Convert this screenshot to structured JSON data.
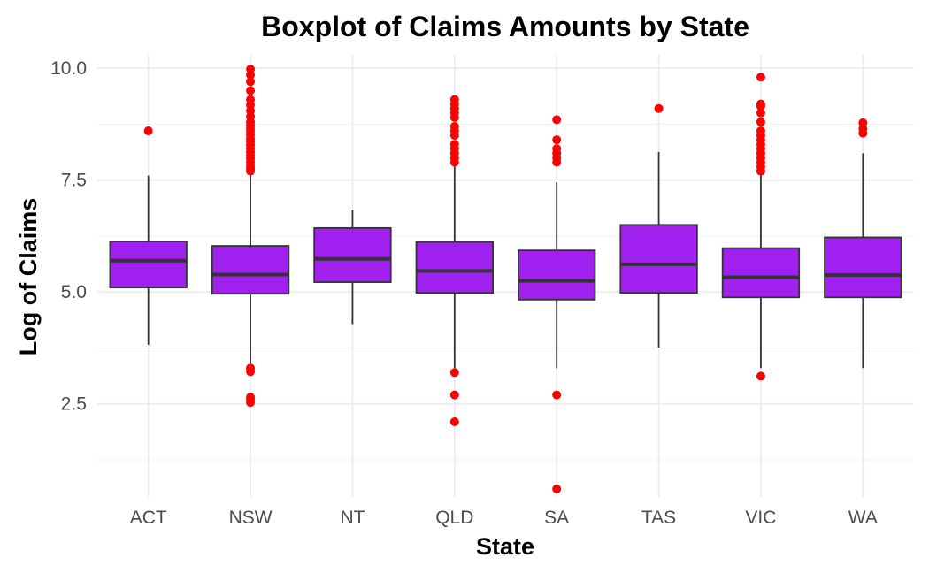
{
  "chart_data": {
    "type": "boxplot",
    "title": "Boxplot of Claims Amounts by State",
    "xlabel": "State",
    "ylabel": "Log of Claims",
    "ylim": [
      0.42,
      10.3
    ],
    "yticks": [
      2.5,
      5.0,
      7.5,
      10.0
    ],
    "ytick_labels": [
      "2.5",
      "5.0",
      "7.5",
      "10.0"
    ],
    "grid": true,
    "box_color": "#a020f0",
    "outlier_color": "#ff0000",
    "categories": [
      "ACT",
      "NSW",
      "NT",
      "QLD",
      "SA",
      "TAS",
      "VIC",
      "WA"
    ],
    "boxes": [
      {
        "category": "ACT",
        "min": 3.82,
        "q1": 5.1,
        "median": 5.7,
        "q3": 6.13,
        "max": 7.6,
        "outliers": [
          8.6
        ]
      },
      {
        "category": "NSW",
        "min": 3.4,
        "q1": 4.96,
        "median": 5.39,
        "q3": 6.03,
        "max": 7.65,
        "outliers": [
          2.53,
          2.6,
          2.65,
          3.22,
          3.3,
          7.7,
          7.75,
          7.82,
          7.9,
          7.98,
          8.05,
          8.12,
          8.2,
          8.28,
          8.35,
          8.42,
          8.5,
          8.58,
          8.65,
          8.72,
          8.8,
          8.92,
          9.05,
          9.18,
          9.3,
          9.5,
          9.7,
          9.85,
          9.98
        ]
      },
      {
        "category": "NT",
        "min": 4.28,
        "q1": 5.22,
        "median": 5.74,
        "q3": 6.43,
        "max": 6.83,
        "outliers": []
      },
      {
        "category": "QLD",
        "min": 3.3,
        "q1": 4.98,
        "median": 5.47,
        "q3": 6.12,
        "max": 7.82,
        "outliers": [
          2.1,
          2.7,
          3.2,
          7.9,
          8.0,
          8.1,
          8.2,
          8.3,
          8.5,
          8.6,
          8.7,
          8.9,
          9.0,
          9.1,
          9.2,
          9.3
        ]
      },
      {
        "category": "SA",
        "min": 3.3,
        "q1": 4.83,
        "median": 5.25,
        "q3": 5.93,
        "max": 7.45,
        "outliers": [
          0.6,
          2.7,
          7.9,
          8.0,
          8.1,
          8.2,
          8.4,
          8.85
        ]
      },
      {
        "category": "TAS",
        "min": 3.76,
        "q1": 4.98,
        "median": 5.62,
        "q3": 6.5,
        "max": 8.13,
        "outliers": [
          9.1
        ]
      },
      {
        "category": "VIC",
        "min": 3.3,
        "q1": 4.88,
        "median": 5.33,
        "q3": 5.98,
        "max": 7.62,
        "outliers": [
          3.12,
          7.7,
          7.8,
          7.9,
          8.0,
          8.1,
          8.2,
          8.3,
          8.4,
          8.5,
          8.6,
          8.8,
          9.0,
          9.15,
          9.2,
          9.8
        ]
      },
      {
        "category": "WA",
        "min": 3.3,
        "q1": 4.88,
        "median": 5.38,
        "q3": 6.22,
        "max": 8.1,
        "outliers": [
          8.55,
          8.65,
          8.78
        ]
      }
    ]
  }
}
